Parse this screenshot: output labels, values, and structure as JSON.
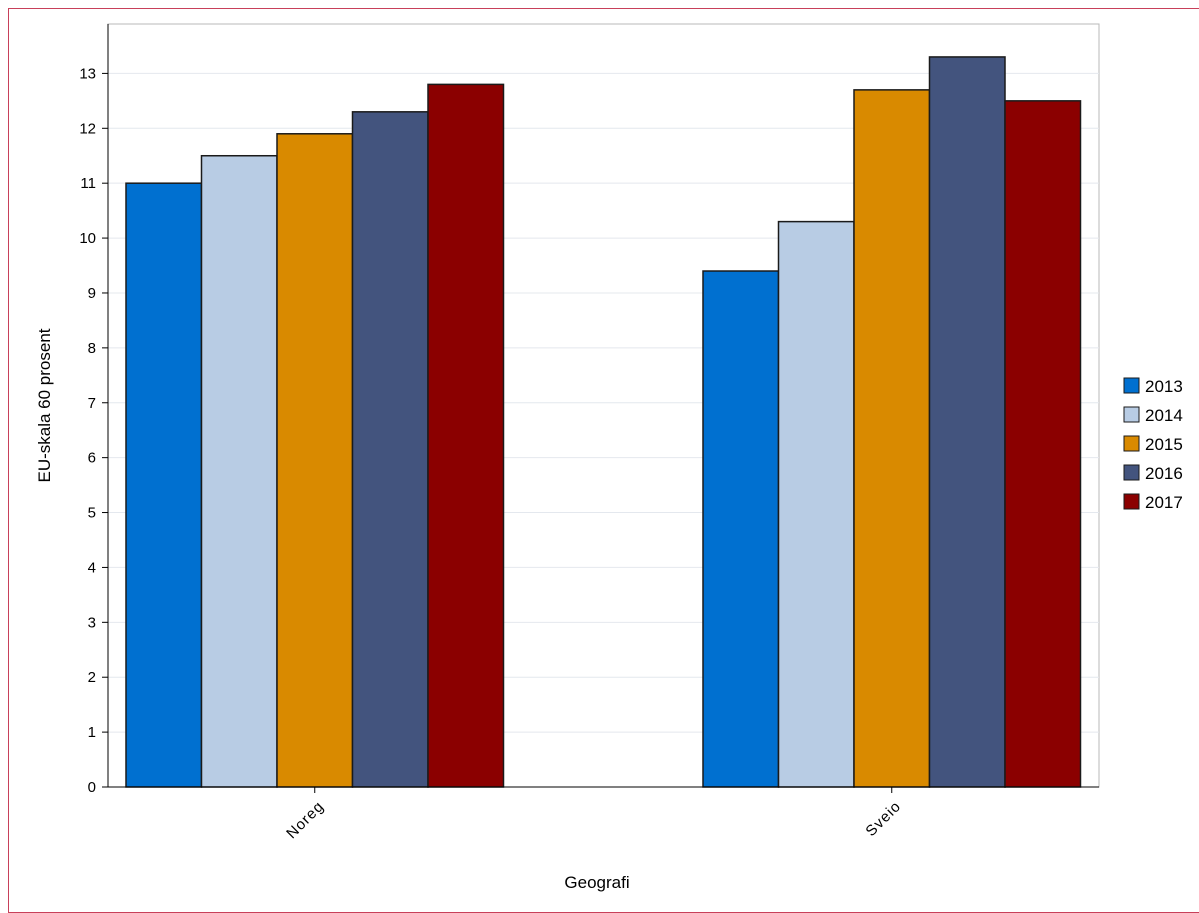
{
  "chart_data": {
    "type": "bar",
    "title": "",
    "xlabel": "Geografi",
    "ylabel": "EU-skala 60 prosent",
    "categories": [
      "Noreg",
      "Sveio"
    ],
    "series": [
      {
        "name": "2013",
        "color": "#0070d0",
        "values": [
          11.0,
          9.4
        ]
      },
      {
        "name": "2014",
        "color": "#b8cce4",
        "values": [
          11.5,
          10.3
        ]
      },
      {
        "name": "2015",
        "color": "#d98a00",
        "values": [
          11.9,
          12.7
        ]
      },
      {
        "name": "2016",
        "color": "#43547e",
        "values": [
          12.3,
          13.3
        ]
      },
      {
        "name": "2017",
        "color": "#8b0000",
        "values": [
          12.8,
          12.5
        ]
      }
    ],
    "ylim": [
      0,
      13.9
    ],
    "yticks": [
      0,
      1,
      2,
      3,
      4,
      5,
      6,
      7,
      8,
      9,
      10,
      11,
      12,
      13
    ],
    "grid": true,
    "legend_position": "right"
  }
}
